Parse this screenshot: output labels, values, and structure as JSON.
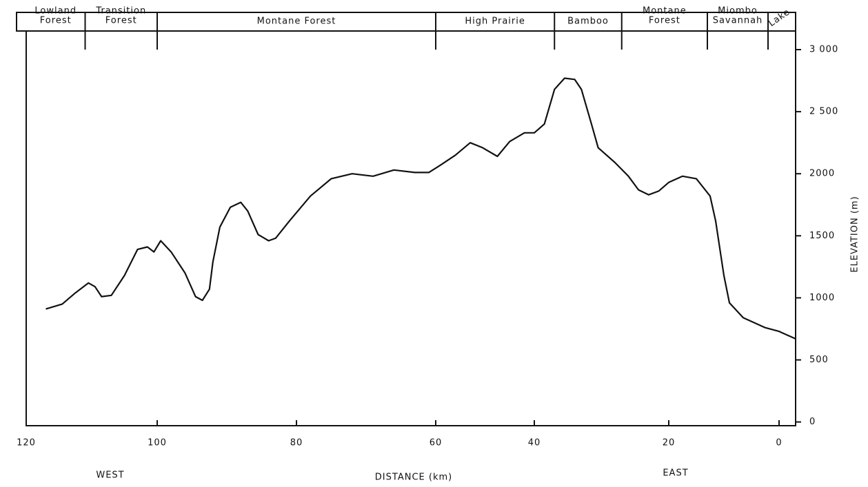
{
  "chart_data": {
    "type": "line",
    "x_label": "DISTANCE (km)",
    "y_label": "ELEVATION (m)",
    "west_label": "WEST",
    "east_label": "EAST",
    "x": [
      117,
      114.5,
      112.5,
      110.5,
      109.5,
      108.5,
      107,
      105,
      103,
      101.5,
      100.5,
      99.5,
      98,
      96,
      94.5,
      93.5,
      92.5,
      92,
      91,
      89.5,
      88,
      87,
      85.5,
      84,
      83,
      81,
      78,
      75,
      72,
      69,
      66,
      63,
      61,
      59,
      56,
      53,
      50.5,
      47.5,
      45,
      42,
      40,
      38.5,
      37,
      35.5,
      34,
      33,
      31.5,
      30.5,
      28,
      26,
      24.5,
      23,
      21.5,
      20,
      17.5,
      15,
      12.5,
      11.5,
      10,
      9,
      6.5,
      2.5,
      0,
      -3
    ],
    "values": [
      910,
      950,
      1040,
      1120,
      1090,
      1010,
      1020,
      1180,
      1390,
      1410,
      1370,
      1460,
      1370,
      1200,
      1010,
      980,
      1070,
      1290,
      1570,
      1730,
      1770,
      1700,
      1510,
      1460,
      1480,
      1620,
      1820,
      1960,
      2000,
      1980,
      2030,
      2010,
      2010,
      2070,
      2150,
      2250,
      2210,
      2140,
      2260,
      2330,
      2330,
      2400,
      2680,
      2770,
      2760,
      2680,
      2400,
      2210,
      2090,
      1980,
      1870,
      1830,
      1860,
      1930,
      1980,
      1960,
      1820,
      1620,
      1180,
      960,
      840,
      760,
      730,
      670
    ],
    "color": "#111111",
    "xlim": [
      120,
      -3
    ],
    "xticks": [
      120,
      100,
      80,
      60,
      40,
      20,
      0
    ],
    "ylim": [
      -30,
      3150
    ],
    "yticks": [
      0,
      500,
      1000,
      1500,
      2000,
      {
        "value": 2500,
        "label": "2 500"
      },
      {
        "value": 3000,
        "label": "3 000"
      }
    ],
    "zones": [
      {
        "lines": [
          "Lowland",
          "Forest"
        ],
        "start": 120,
        "end": 111
      },
      {
        "lines": [
          "Transition",
          "Forest"
        ],
        "start": 111,
        "end": 100
      },
      {
        "lines": [
          "Montane   Forest"
        ],
        "start": 100,
        "end": 60
      },
      {
        "lines": [
          "High Prairie"
        ],
        "start": 60,
        "end": 37
      },
      {
        "lines": [
          "Bamboo"
        ],
        "start": 37,
        "end": 27
      },
      {
        "lines": [
          "Montane",
          "Forest"
        ],
        "start": 27,
        "end": 13
      },
      {
        "lines": [
          "Miombo",
          "Savannah"
        ],
        "start": 13,
        "end": 2
      },
      {
        "lines": [
          "Lake"
        ],
        "start": 2,
        "end": -3
      }
    ]
  }
}
